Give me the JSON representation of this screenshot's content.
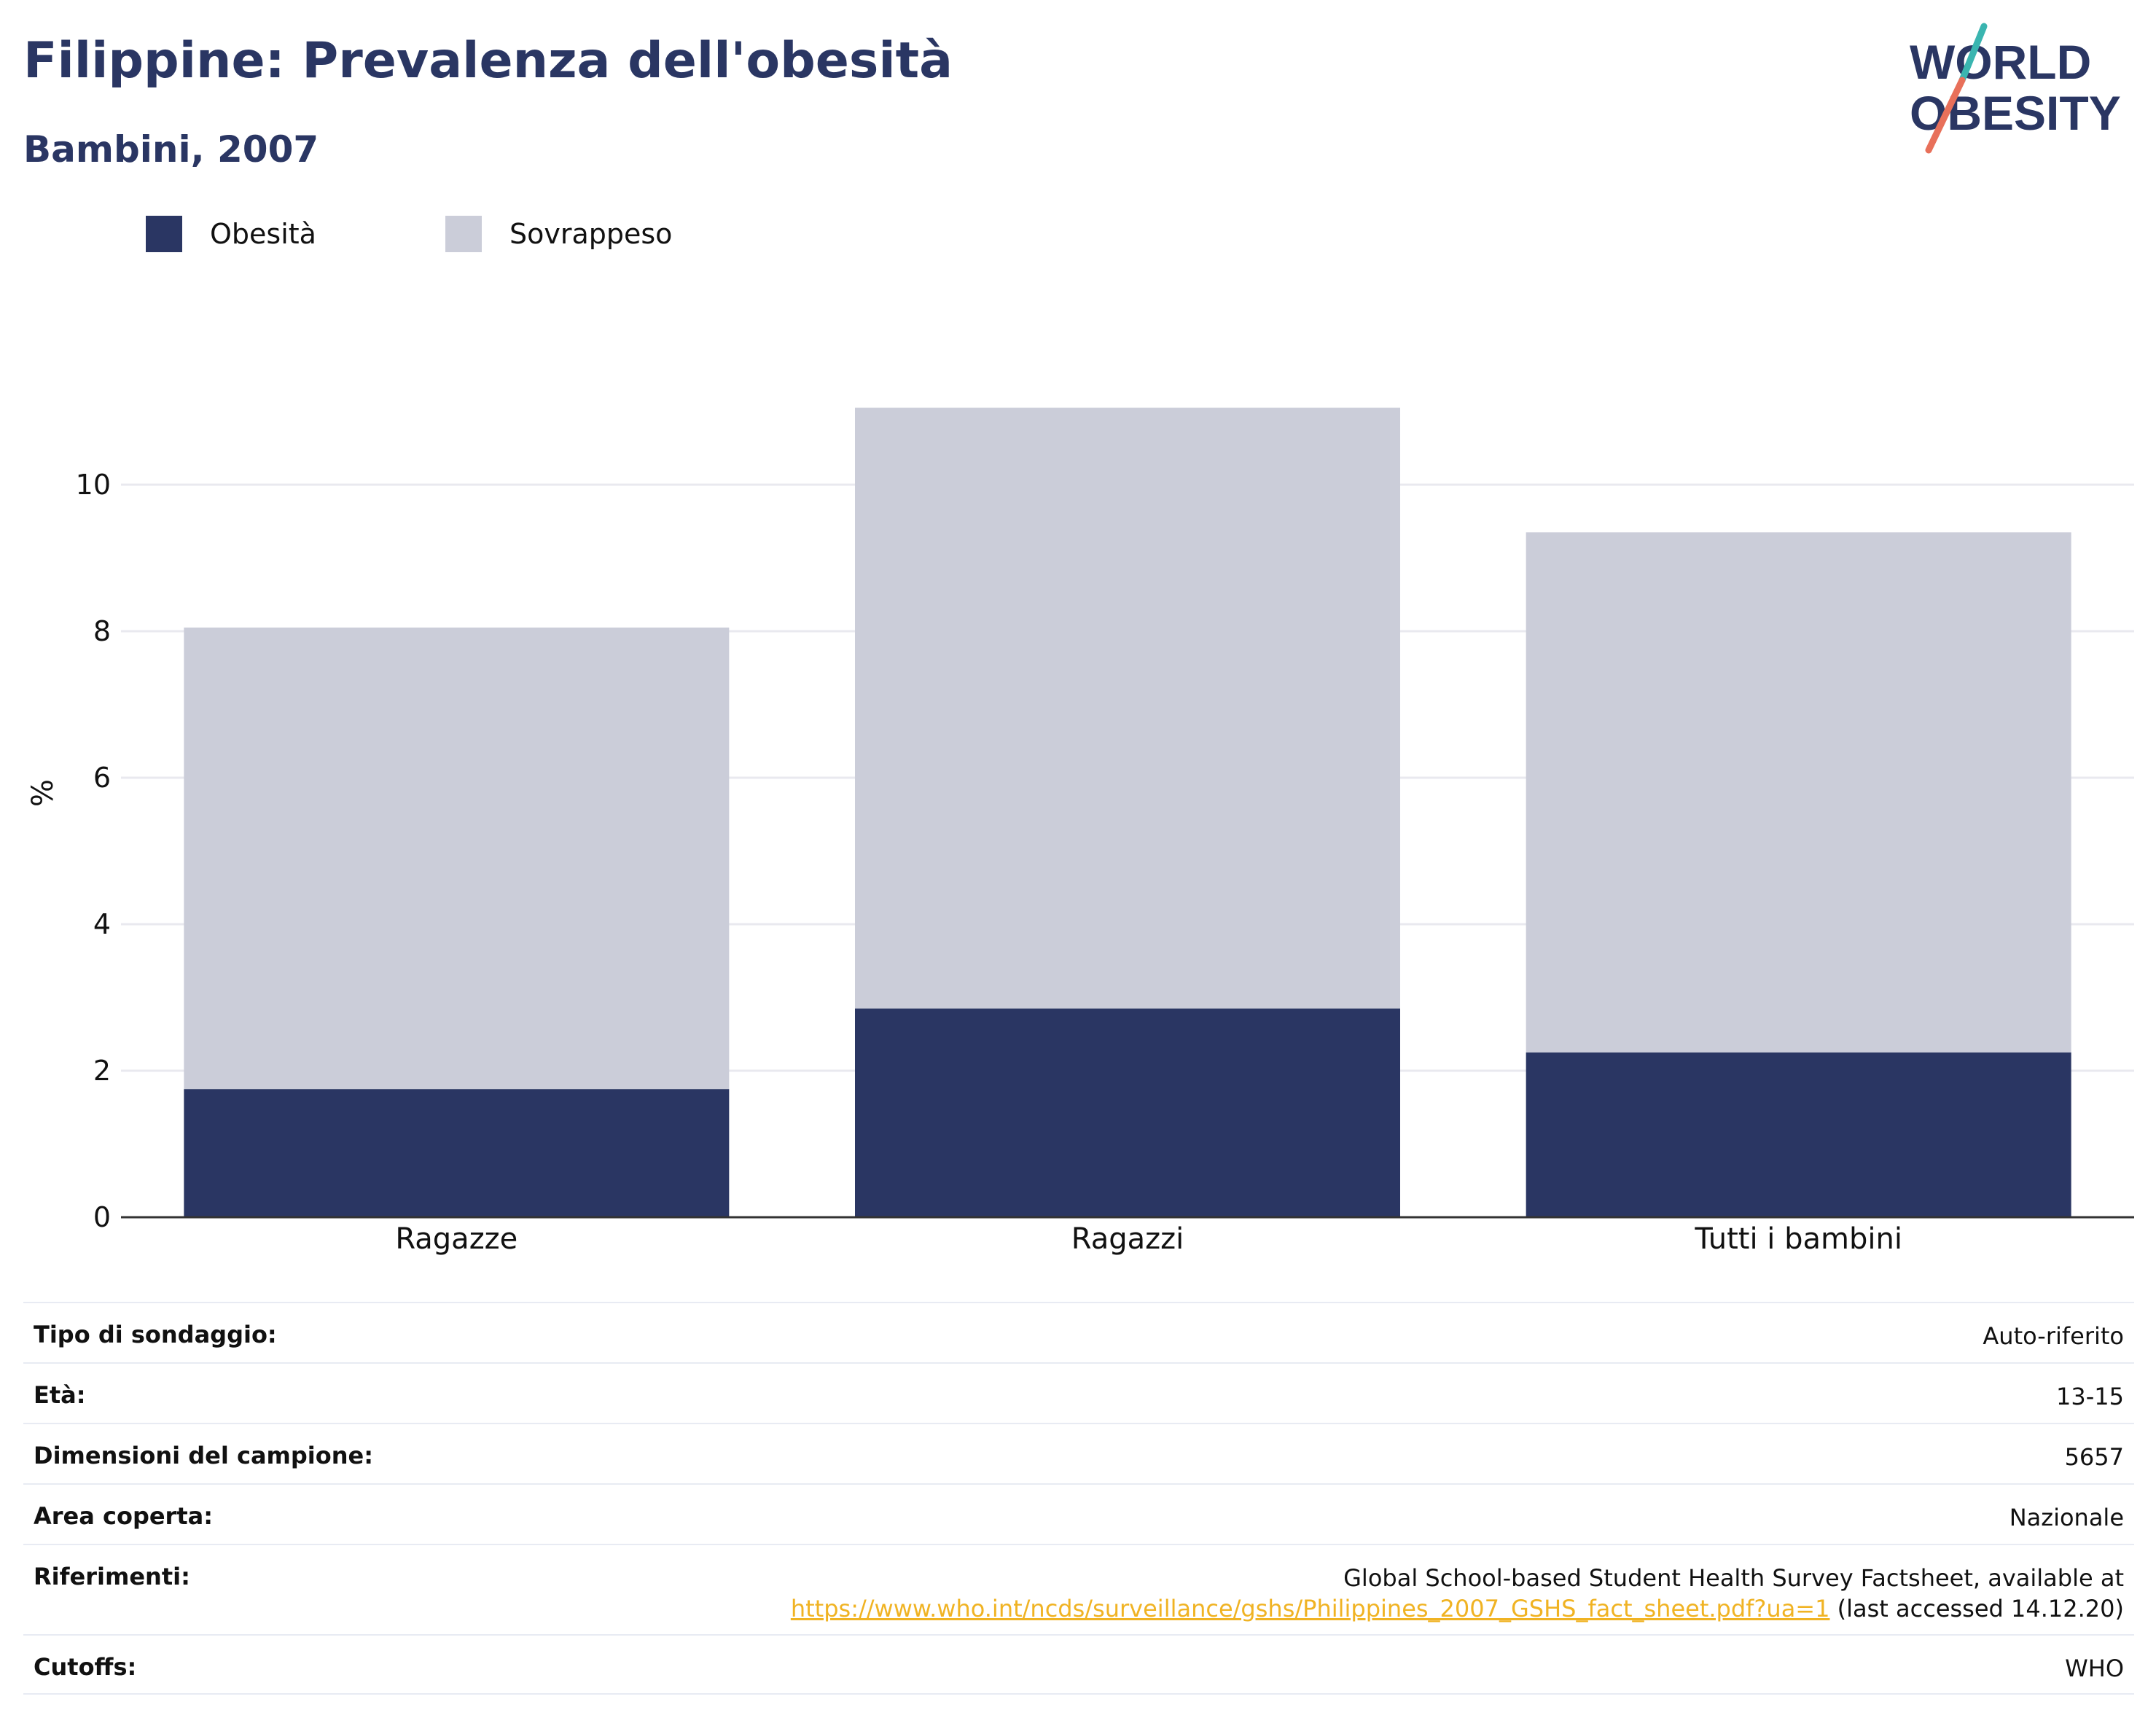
{
  "header": {
    "title": "Filippine: Prevalenza dell'obesità",
    "subtitle": "Bambini, 2007"
  },
  "logo": {
    "line1": "WORLD",
    "line2": "OBESITY"
  },
  "colors": {
    "obesity": "#2a3663",
    "overweight": "#cbcdd9",
    "grid": "#e9e9ef",
    "axis": "#333333",
    "link": "#f0b323",
    "logo_teal": "#3ab5b0",
    "logo_coral": "#e8705a"
  },
  "legend": [
    {
      "label": "Obesità",
      "color": "#2a3663"
    },
    {
      "label": "Sovrappeso",
      "color": "#cbcdd9"
    }
  ],
  "chart_data": {
    "type": "bar",
    "stacked": true,
    "categories": [
      "Ragazze",
      "Ragazzi",
      "Tutti i bambini"
    ],
    "series": [
      {
        "name": "Obesità",
        "values": [
          1.75,
          2.85,
          2.25
        ]
      },
      {
        "name": "Sovrappeso",
        "values": [
          6.3,
          8.2,
          7.1
        ]
      }
    ],
    "ylabel": "%",
    "ylim": [
      0,
      11
    ],
    "yticks": [
      0,
      2,
      4,
      6,
      8,
      10
    ],
    "grid": true,
    "legend_position": "top-left"
  },
  "meta": [
    {
      "label": "Tipo di sondaggio:",
      "value": "Auto-riferito"
    },
    {
      "label": "Età:",
      "value": "13-15"
    },
    {
      "label": "Dimensioni del campione:",
      "value": "5657"
    },
    {
      "label": "Area coperta:",
      "value": "Nazionale"
    },
    {
      "label": "Riferimenti:",
      "value": "Global School-based Student Health Survey Factsheet, available at",
      "link": "https://www.who.int/ncds/surveillance/gshs/Philippines_2007_GSHS_fact_sheet.pdf?ua=1",
      "suffix": " (last accessed 14.12.20)"
    },
    {
      "label": "Cutoffs:",
      "value": "WHO"
    }
  ]
}
